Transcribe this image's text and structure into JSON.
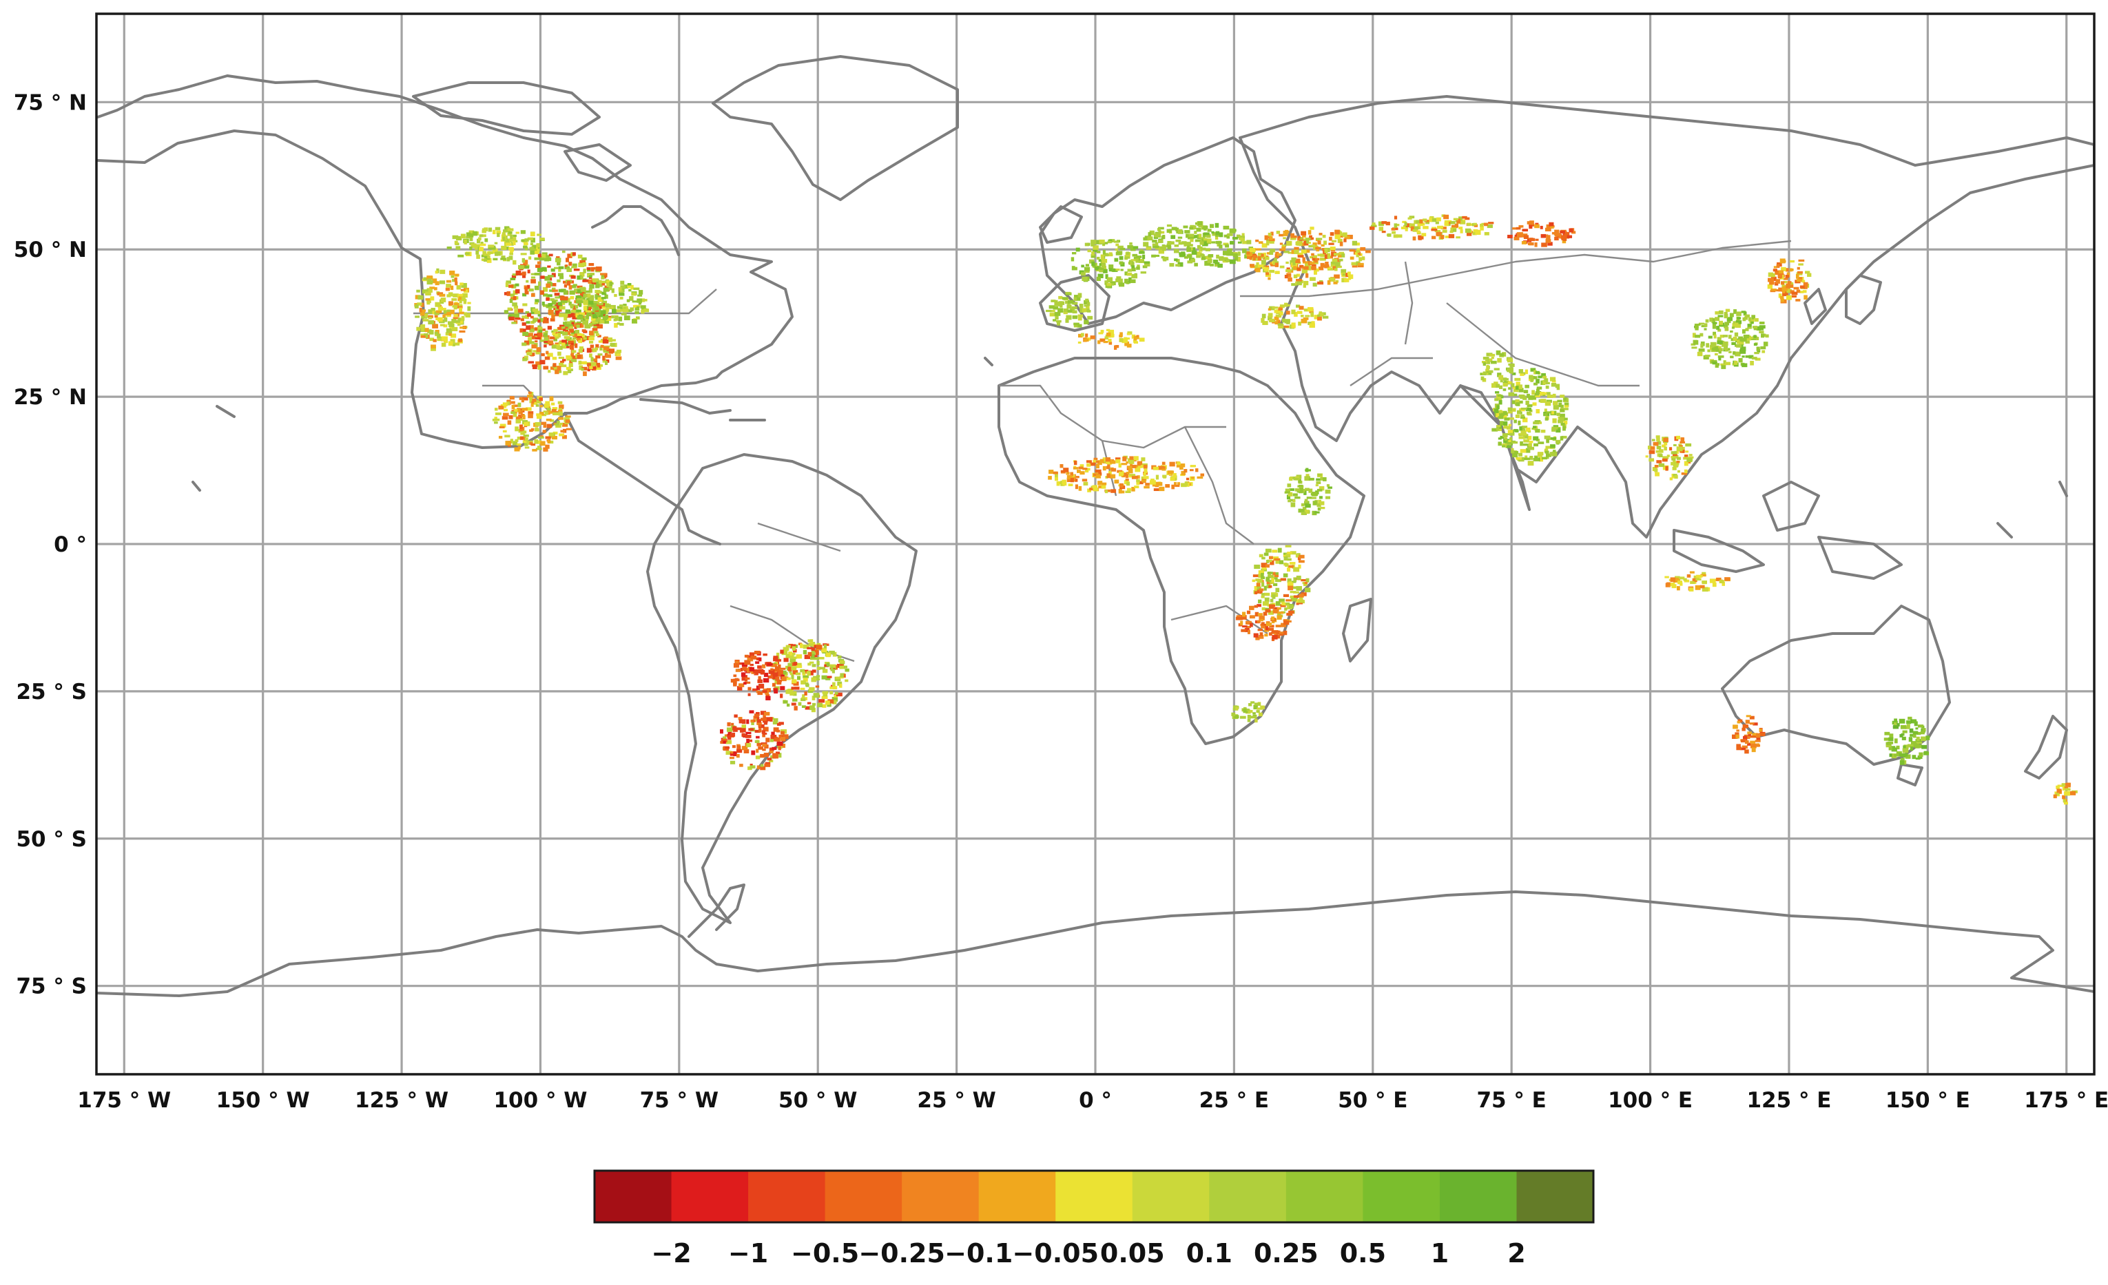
{
  "colors": {
    "grid": "#a3a3a3",
    "coastline": "#7d7d7d",
    "frame": "#1a1a1a"
  },
  "map": {
    "projection": "equirectangular",
    "lon_range": [
      -180,
      180
    ],
    "lat_range": [
      -90,
      90
    ],
    "lon_ticks": [
      {
        "value": -175,
        "label": "175 ° W"
      },
      {
        "value": -150,
        "label": "150 ° W"
      },
      {
        "value": -125,
        "label": "125 ° W"
      },
      {
        "value": -100,
        "label": "100 ° W"
      },
      {
        "value": -75,
        "label": "75 ° W"
      },
      {
        "value": -50,
        "label": "50 ° W"
      },
      {
        "value": -25,
        "label": "25 ° W"
      },
      {
        "value": 0,
        "label": "0 °"
      },
      {
        "value": 25,
        "label": "25 ° E"
      },
      {
        "value": 50,
        "label": "50 ° E"
      },
      {
        "value": 75,
        "label": "75 ° E"
      },
      {
        "value": 100,
        "label": "100 ° E"
      },
      {
        "value": 125,
        "label": "125 ° E"
      },
      {
        "value": 150,
        "label": "150 ° E"
      },
      {
        "value": 175,
        "label": "175 ° E"
      }
    ],
    "lat_ticks": [
      {
        "value": 75,
        "label": "75 ° N"
      },
      {
        "value": 50,
        "label": "50 ° N"
      },
      {
        "value": 25,
        "label": "25 ° N"
      },
      {
        "value": 0,
        "label": "0 °"
      },
      {
        "value": -25,
        "label": "25 ° S"
      },
      {
        "value": -50,
        "label": "50 ° S"
      },
      {
        "value": -75,
        "label": "75 ° S"
      }
    ],
    "extra_gridline_lat": -90
  },
  "colorbar": {
    "colors": [
      "#a50f15",
      "#de1c1c",
      "#e6421b",
      "#ec661a",
      "#f08420",
      "#f0a81e",
      "#ebe233",
      "#cbd83a",
      "#b0cf3c",
      "#97c633",
      "#7bbe2d",
      "#6ab32e",
      "#647c28"
    ],
    "tick_labels": [
      "−2",
      "−1",
      "−0.5",
      "−0.25",
      "−0.1",
      "−0.05",
      "0.05",
      "0.1",
      "0.25",
      "0.5",
      "1",
      "2"
    ]
  },
  "data_regions": [
    {
      "name": "us-great-plains",
      "lon": -97,
      "lat": 42,
      "rx": 10,
      "ry": 8,
      "mix": [
        -0.5,
        -0.25,
        0.1,
        0.25,
        0.5
      ]
    },
    {
      "name": "us-midwest",
      "lon": -88,
      "lat": 41,
      "rx": 7,
      "ry": 4,
      "mix": [
        0.25,
        0.5,
        0.1,
        0.05
      ]
    },
    {
      "name": "canada-prairies",
      "lon": -108,
      "lat": 51,
      "rx": 9,
      "ry": 3,
      "mix": [
        0.1,
        0.05,
        0.25
      ]
    },
    {
      "name": "us-south",
      "lon": -95,
      "lat": 33,
      "rx": 9,
      "ry": 4,
      "mix": [
        -0.5,
        -0.25,
        0.05,
        0.1
      ]
    },
    {
      "name": "us-west",
      "lon": -118,
      "lat": 40,
      "rx": 5,
      "ry": 7,
      "mix": [
        0.1,
        0.05,
        -0.1
      ]
    },
    {
      "name": "mexico",
      "lon": -102,
      "lat": 21,
      "rx": 7,
      "ry": 5,
      "mix": [
        0.05,
        0.1,
        -0.1,
        -0.25
      ]
    },
    {
      "name": "brazil-south",
      "lon": -52,
      "lat": -22,
      "rx": 7,
      "ry": 6,
      "mix": [
        0.1,
        0.25,
        0.05,
        -0.5
      ]
    },
    {
      "name": "paraguay-chaco",
      "lon": -61,
      "lat": -22,
      "rx": 5,
      "ry": 4,
      "mix": [
        -0.5,
        -1,
        -0.25
      ]
    },
    {
      "name": "argentina-pampas",
      "lon": -62,
      "lat": -33,
      "rx": 6,
      "ry": 5,
      "mix": [
        -0.5,
        -0.25,
        0.1,
        -1
      ]
    },
    {
      "name": "sahel",
      "lon": 5,
      "lat": 12,
      "rx": 14,
      "ry": 3,
      "mix": [
        -0.1,
        -0.05,
        0.05,
        -0.25
      ]
    },
    {
      "name": "ethiopia",
      "lon": 38,
      "lat": 9,
      "rx": 4,
      "ry": 4,
      "mix": [
        0.25,
        0.5,
        0.1
      ]
    },
    {
      "name": "east-africa",
      "lon": 33,
      "lat": -6,
      "rx": 5,
      "ry": 6,
      "mix": [
        0.25,
        0.1,
        0.05,
        -0.25
      ]
    },
    {
      "name": "zambia",
      "lon": 30,
      "lat": -13,
      "rx": 5,
      "ry": 3,
      "mix": [
        -0.25,
        -0.1,
        -0.5
      ]
    },
    {
      "name": "south-africa",
      "lon": 27,
      "lat": -28,
      "rx": 3,
      "ry": 2,
      "mix": [
        0.1,
        0.25
      ]
    },
    {
      "name": "europe-west",
      "lon": 2,
      "lat": 48,
      "rx": 7,
      "ry": 4,
      "mix": [
        0.25,
        0.1,
        0.5
      ]
    },
    {
      "name": "europe-central",
      "lon": 18,
      "lat": 51,
      "rx": 10,
      "ry": 4,
      "mix": [
        0.25,
        0.5,
        0.1
      ]
    },
    {
      "name": "ukraine-russia",
      "lon": 38,
      "lat": 49,
      "rx": 11,
      "ry": 5,
      "mix": [
        0.1,
        0.05,
        -0.25,
        -0.1
      ]
    },
    {
      "name": "russia-east",
      "lon": 60,
      "lat": 54,
      "rx": 12,
      "ry": 2,
      "mix": [
        0.05,
        0.1,
        -0.25
      ]
    },
    {
      "name": "siberia-south",
      "lon": 80,
      "lat": 53,
      "rx": 6,
      "ry": 2,
      "mix": [
        -0.5,
        -0.25,
        -0.1
      ]
    },
    {
      "name": "iberia",
      "lon": -5,
      "lat": 40,
      "rx": 4,
      "ry": 3,
      "mix": [
        0.25,
        0.1
      ]
    },
    {
      "name": "turkey",
      "lon": 35,
      "lat": 39,
      "rx": 6,
      "ry": 2,
      "mix": [
        0.05,
        0.1,
        -0.1
      ]
    },
    {
      "name": "maghreb",
      "lon": 2,
      "lat": 35,
      "rx": 6,
      "ry": 1.5,
      "mix": [
        -0.1,
        -0.05,
        0.05
      ]
    },
    {
      "name": "india",
      "lon": 78,
      "lat": 22,
      "rx": 7,
      "ry": 8,
      "mix": [
        0.25,
        0.5,
        0.1,
        0.05
      ]
    },
    {
      "name": "pakistan",
      "lon": 72,
      "lat": 30,
      "rx": 3,
      "ry": 3,
      "mix": [
        0.25,
        0.1
      ]
    },
    {
      "name": "china-north",
      "lon": 114,
      "lat": 35,
      "rx": 7,
      "ry": 5,
      "mix": [
        0.25,
        0.5,
        0.1
      ]
    },
    {
      "name": "manchuria",
      "lon": 125,
      "lat": 45,
      "rx": 4,
      "ry": 4,
      "mix": [
        -0.25,
        -0.1,
        0.05
      ]
    },
    {
      "name": "se-asia",
      "lon": 103,
      "lat": 15,
      "rx": 4,
      "ry": 4,
      "mix": [
        -0.25,
        0.1,
        0.05
      ]
    },
    {
      "name": "indonesia",
      "lon": 108,
      "lat": -6,
      "rx": 6,
      "ry": 1.5,
      "mix": [
        -0.1,
        0.05
      ]
    },
    {
      "name": "australia-west",
      "lon": 117,
      "lat": -32,
      "rx": 3,
      "ry": 3,
      "mix": [
        -0.5,
        -0.25,
        -0.1
      ]
    },
    {
      "name": "australia-east",
      "lon": 146,
      "lat": -33,
      "rx": 4,
      "ry": 4,
      "mix": [
        0.5,
        0.25,
        1
      ]
    },
    {
      "name": "nz",
      "lon": 174,
      "lat": -42,
      "rx": 2,
      "ry": 2,
      "mix": [
        -0.1,
        0.05
      ]
    }
  ]
}
